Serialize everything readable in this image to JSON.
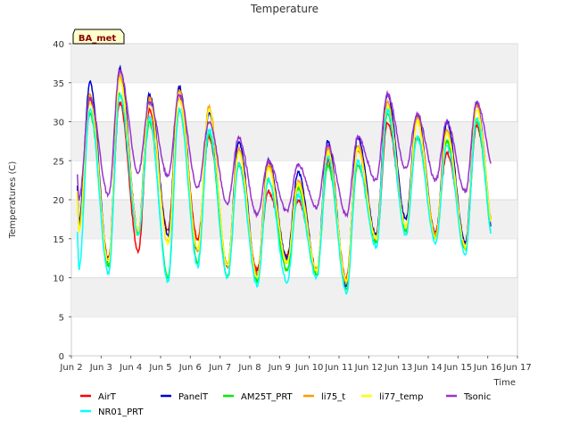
{
  "chart_data": {
    "type": "line",
    "title": "Temperature",
    "xlabel": "Time",
    "ylabel": "Temperatures (C)",
    "site_badge": "BA_met",
    "xlim": [
      2,
      17
    ],
    "ylim": [
      0,
      40
    ],
    "y_ticks": [
      0,
      5,
      10,
      15,
      20,
      25,
      30,
      35,
      40
    ],
    "x_ticks": [
      2,
      3,
      4,
      5,
      6,
      7,
      8,
      9,
      10,
      11,
      12,
      13,
      14,
      15,
      16,
      17
    ],
    "x_tick_labels": [
      "Jun 2",
      "Jun 3",
      "Jun 4",
      "Jun 5",
      "Jun 6",
      "Jun 7",
      "Jun 8",
      "Jun 9",
      "Jun 10",
      "Jun 11",
      "Jun 12",
      "Jun 13",
      "Jun 14",
      "Jun 15",
      "Jun 16",
      "Jun 17"
    ],
    "grid": "horizontal bands",
    "legend_position": "bottom",
    "series": [
      {
        "name": "AirT",
        "color": "#ff0000",
        "style": "diurnal",
        "min": [
          16.5,
          12.5,
          13.5,
          16.0,
          15.0,
          11.5,
          11.0,
          13.0,
          11.0,
          10.0,
          14.5,
          16.5,
          16.0,
          14.5,
          15.5
        ],
        "max": [
          33.0,
          32.5,
          31.5,
          33.0,
          28.0,
          24.5,
          21.0,
          20.0,
          25.0,
          26.5,
          30.0,
          28.0,
          26.0,
          29.5
        ]
      },
      {
        "name": "PanelT",
        "color": "#0000cc",
        "style": "diurnal",
        "min": [
          17.0,
          12.0,
          16.0,
          15.5,
          13.5,
          11.5,
          10.5,
          12.5,
          11.0,
          9.0,
          15.5,
          17.5,
          15.5,
          14.5,
          14.0
        ],
        "max": [
          35.0,
          37.0,
          33.5,
          34.5,
          31.0,
          27.5,
          25.0,
          23.5,
          27.5,
          28.0,
          33.5,
          31.0,
          30.0,
          32.5
        ]
      },
      {
        "name": "AM25T_PRT",
        "color": "#00ee00",
        "style": "diurnal",
        "min": [
          16.0,
          11.5,
          15.5,
          10.0,
          12.0,
          10.0,
          9.5,
          11.0,
          10.5,
          8.5,
          14.5,
          16.0,
          15.0,
          13.5,
          13.5
        ],
        "max": [
          31.0,
          33.5,
          30.0,
          31.5,
          28.5,
          24.5,
          22.5,
          21.5,
          24.5,
          24.5,
          31.0,
          28.0,
          27.5,
          30.0
        ]
      },
      {
        "name": "li75_t",
        "color": "#ff9900",
        "style": "diurnal",
        "min": [
          16.0,
          12.0,
          16.0,
          14.5,
          13.5,
          11.5,
          10.5,
          12.0,
          11.0,
          9.5,
          15.0,
          16.5,
          15.5,
          14.0,
          15.0
        ],
        "max": [
          33.5,
          36.0,
          33.0,
          34.0,
          32.0,
          26.5,
          24.5,
          22.5,
          26.5,
          27.0,
          32.5,
          30.5,
          29.0,
          32.0
        ]
      },
      {
        "name": "li77_temp",
        "color": "#ffff00",
        "style": "diurnal",
        "min": [
          16.0,
          12.0,
          16.0,
          14.5,
          13.5,
          11.5,
          10.0,
          12.0,
          11.0,
          9.5,
          15.0,
          16.5,
          15.0,
          14.0,
          15.0
        ],
        "max": [
          32.5,
          35.5,
          32.5,
          33.0,
          31.5,
          26.0,
          24.0,
          22.0,
          26.0,
          26.5,
          32.0,
          30.0,
          28.5,
          31.5
        ]
      },
      {
        "name": "Tsonic",
        "color": "#9933cc",
        "style": "diurnal",
        "min": [
          20.0,
          20.5,
          23.5,
          23.0,
          21.5,
          19.5,
          18.0,
          18.5,
          19.0,
          18.0,
          22.5,
          24.0,
          22.5,
          21.0,
          23.5
        ],
        "max": [
          33.0,
          36.5,
          32.5,
          33.5,
          30.0,
          28.0,
          25.0,
          24.5,
          27.0,
          28.0,
          33.5,
          31.0,
          30.0,
          32.5
        ]
      },
      {
        "name": "NR01_PRT",
        "color": "#00ffff",
        "style": "diurnal",
        "min": [
          11.0,
          10.5,
          15.5,
          9.5,
          11.5,
          10.0,
          9.0,
          9.5,
          10.0,
          8.0,
          14.0,
          15.5,
          14.5,
          13.0,
          13.5
        ],
        "max": [
          31.5,
          33.5,
          30.5,
          31.5,
          29.0,
          24.5,
          22.5,
          20.5,
          25.5,
          25.0,
          31.5,
          28.0,
          27.0,
          30.5
        ]
      }
    ],
    "x_start": 2.2,
    "x_end": 16.1
  }
}
